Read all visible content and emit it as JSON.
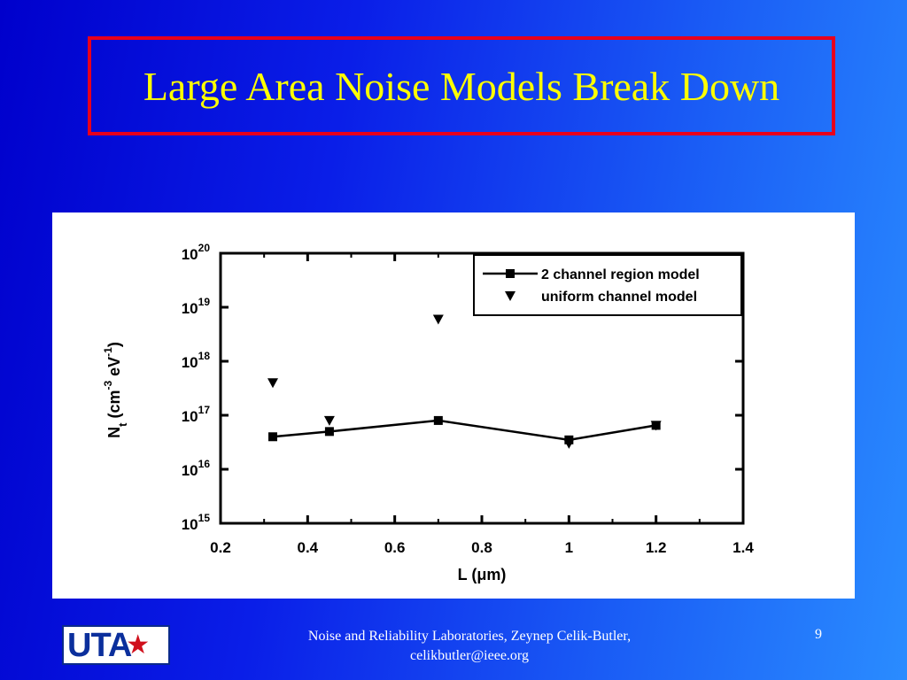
{
  "slide": {
    "title": "Large Area Noise Models Break Down",
    "footer_line1": "Noise and Reliability Laboratories, Zeynep Celik-Butler,",
    "footer_line2": "celikbutler@ieee.org",
    "page_number": "9",
    "logo_text": "UTA",
    "logo_star": "★",
    "colors": {
      "background_left": "#0000cc",
      "background_right": "#2a8cff",
      "title_text": "#ffff00",
      "title_border": "#e8001c",
      "chart_panel": "#ffffff"
    }
  },
  "chart_data": {
    "type": "scatter",
    "title": "",
    "xlabel": "L (μm)",
    "ylabel_parts": {
      "N": "N",
      "t": "t",
      "open": " (cm",
      "sup1": "-3",
      "mid": " eV",
      "sup2": "-1",
      "close": ")"
    },
    "xlim": [
      0.2,
      1.4
    ],
    "x_ticks": [
      "0.2",
      "0.4",
      "0.6",
      "0.8",
      "1",
      "1.2",
      "1.4"
    ],
    "ylim": [
      1000000000000000.0,
      1e+20
    ],
    "yscale": "log",
    "y_tick_exponents": [
      15,
      16,
      17,
      18,
      19,
      20
    ],
    "y_tick_base": "10",
    "legend_position": "top-right",
    "grid": false,
    "series": [
      {
        "name": "2 channel region model",
        "marker": "square",
        "line": true,
        "x": [
          0.32,
          0.45,
          0.7,
          1.0,
          1.2
        ],
        "y": [
          4e+16,
          5e+16,
          8e+16,
          3.5e+16,
          6.5e+16
        ]
      },
      {
        "name": "uniform channel model",
        "marker": "triangle-down",
        "line": false,
        "x": [
          0.32,
          0.45,
          0.7,
          1.0,
          1.2
        ],
        "y": [
          4e+17,
          8e+16,
          6e+18,
          3e+16,
          6.5e+16
        ]
      }
    ]
  }
}
